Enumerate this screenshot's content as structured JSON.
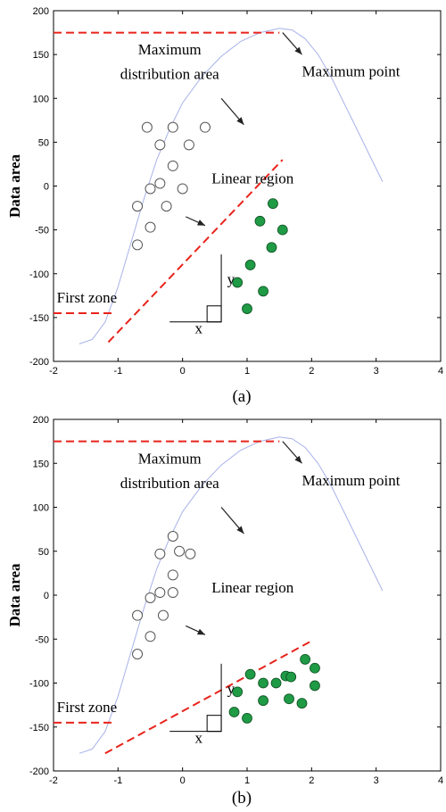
{
  "chart_data": [
    {
      "type": "scatter",
      "caption": "(a)",
      "ylabel": "Data area",
      "xlim": [
        -2,
        4
      ],
      "ylim": [
        -200,
        200
      ],
      "xticks": [
        -2,
        -1,
        0,
        1,
        2,
        3,
        4
      ],
      "yticks": [
        -200,
        -150,
        -100,
        -50,
        0,
        50,
        100,
        150,
        200
      ],
      "curve": [
        [
          -1.6,
          -180
        ],
        [
          -1.4,
          -175
        ],
        [
          -1.2,
          -155
        ],
        [
          -1.0,
          -115
        ],
        [
          -0.8,
          -65
        ],
        [
          -0.6,
          -15
        ],
        [
          -0.4,
          30
        ],
        [
          -0.2,
          65
        ],
        [
          0,
          95
        ],
        [
          0.3,
          125
        ],
        [
          0.6,
          148
        ],
        [
          0.9,
          165
        ],
        [
          1.2,
          175
        ],
        [
          1.5,
          180
        ],
        [
          1.7,
          178
        ],
        [
          1.9,
          168
        ],
        [
          2.1,
          150
        ],
        [
          2.3,
          125
        ],
        [
          2.5,
          95
        ],
        [
          2.7,
          65
        ],
        [
          2.9,
          35
        ],
        [
          3.1,
          5
        ]
      ],
      "open_points": [
        [
          -0.55,
          67
        ],
        [
          -0.35,
          47
        ],
        [
          -0.15,
          67
        ],
        [
          0.35,
          67
        ],
        [
          0.1,
          47
        ],
        [
          -0.15,
          23
        ],
        [
          -0.35,
          3
        ],
        [
          -0.5,
          -3
        ],
        [
          -0.7,
          -23
        ],
        [
          -0.25,
          -23
        ],
        [
          0,
          -3
        ],
        [
          -0.5,
          -47
        ],
        [
          -0.7,
          -67
        ]
      ],
      "filled_points": [
        [
          1.4,
          -20
        ],
        [
          1.2,
          -40
        ],
        [
          1.55,
          -50
        ],
        [
          1.38,
          -70
        ],
        [
          1.05,
          -90
        ],
        [
          0.85,
          -110
        ],
        [
          1.25,
          -120
        ],
        [
          1.0,
          -140
        ]
      ],
      "dashed_lines": [
        {
          "name": "max",
          "pts": [
            [
              -2,
              175
            ],
            [
              1.5,
              175
            ]
          ]
        },
        {
          "name": "first",
          "pts": [
            [
              -2,
              -145
            ],
            [
              -1.1,
              -145
            ]
          ]
        },
        {
          "name": "linear",
          "pts": [
            [
              -1.15,
              -178
            ],
            [
              1.55,
              30
            ]
          ]
        }
      ],
      "arrows": [
        {
          "name": "max-point",
          "from": [
            1.55,
            175
          ],
          "to": [
            1.85,
            150
          ]
        },
        {
          "name": "dist-area",
          "from": [
            0.6,
            100
          ],
          "to": [
            0.95,
            70
          ]
        },
        {
          "name": "linear-region",
          "from": [
            0.05,
            -35
          ],
          "to": [
            0.35,
            -45
          ]
        }
      ],
      "axes_marker": {
        "corner": [
          -0.2,
          -155
        ],
        "x_end": [
          0.6,
          -155
        ],
        "y_end": [
          0.6,
          -78
        ],
        "box": 0.22,
        "box_h": 18,
        "x_label_at": [
          0.25,
          -168
        ],
        "y_label_at": [
          0.75,
          -112
        ]
      },
      "labels": [
        {
          "name": "max-dist-line1",
          "text": "Maximum",
          "at": [
            -0.2,
            150
          ],
          "anchor": "middle"
        },
        {
          "name": "max-dist-line2",
          "text": "distribution area",
          "at": [
            -0.2,
            122
          ],
          "anchor": "middle"
        },
        {
          "name": "max-point",
          "text": "Maximum point",
          "at": [
            1.85,
            125
          ],
          "anchor": "start"
        },
        {
          "name": "linear-region",
          "text": "Linear region",
          "at": [
            0.45,
            3
          ],
          "anchor": "start"
        },
        {
          "name": "first-zone",
          "text": "First zone",
          "at": [
            -1.95,
            -133
          ],
          "anchor": "start"
        },
        {
          "name": "x",
          "text": "x",
          "at": [
            0.25,
            -168
          ],
          "anchor": "middle"
        },
        {
          "name": "y",
          "text": "y",
          "at": [
            0.75,
            -112
          ],
          "anchor": "middle"
        }
      ]
    },
    {
      "type": "scatter",
      "caption": "(b)",
      "ylabel": "Data area",
      "xlim": [
        -2,
        4
      ],
      "ylim": [
        -200,
        200
      ],
      "xticks": [
        -2,
        -1,
        0,
        1,
        2,
        3,
        4
      ],
      "yticks": [
        -200,
        -150,
        -100,
        -50,
        0,
        50,
        100,
        150,
        200
      ],
      "curve": [
        [
          -1.6,
          -180
        ],
        [
          -1.4,
          -175
        ],
        [
          -1.2,
          -155
        ],
        [
          -1.0,
          -115
        ],
        [
          -0.8,
          -65
        ],
        [
          -0.6,
          -15
        ],
        [
          -0.4,
          30
        ],
        [
          -0.2,
          65
        ],
        [
          0,
          95
        ],
        [
          0.3,
          125
        ],
        [
          0.6,
          148
        ],
        [
          0.9,
          165
        ],
        [
          1.2,
          175
        ],
        [
          1.5,
          180
        ],
        [
          1.7,
          178
        ],
        [
          1.9,
          168
        ],
        [
          2.1,
          150
        ],
        [
          2.3,
          125
        ],
        [
          2.5,
          95
        ],
        [
          2.7,
          65
        ],
        [
          2.9,
          35
        ],
        [
          3.1,
          5
        ]
      ],
      "open_points": [
        [
          -0.15,
          67
        ],
        [
          -0.35,
          47
        ],
        [
          -0.05,
          50
        ],
        [
          0.12,
          47
        ],
        [
          -0.15,
          23
        ],
        [
          -0.35,
          3
        ],
        [
          -0.15,
          3
        ],
        [
          -0.5,
          -3
        ],
        [
          -0.7,
          -23
        ],
        [
          -0.3,
          -23
        ],
        [
          -0.5,
          -47
        ],
        [
          -0.7,
          -67
        ]
      ],
      "filled_points": [
        [
          1.9,
          -73
        ],
        [
          2.05,
          -83
        ],
        [
          0.85,
          -110
        ],
        [
          1.05,
          -90
        ],
        [
          1.25,
          -100
        ],
        [
          1.45,
          -100
        ],
        [
          1.6,
          -92
        ],
        [
          1.68,
          -93
        ],
        [
          2.05,
          -103
        ],
        [
          0.8,
          -133
        ],
        [
          1.25,
          -120
        ],
        [
          1.65,
          -118
        ],
        [
          1.85,
          -123
        ],
        [
          1.0,
          -140
        ]
      ],
      "dashed_lines": [
        {
          "name": "max",
          "pts": [
            [
              -2,
              175
            ],
            [
              1.5,
              175
            ]
          ]
        },
        {
          "name": "first",
          "pts": [
            [
              -2,
              -145
            ],
            [
              -1.1,
              -145
            ]
          ]
        },
        {
          "name": "linear",
          "pts": [
            [
              -1.2,
              -180
            ],
            [
              2.0,
              -52
            ]
          ]
        }
      ],
      "arrows": [
        {
          "name": "max-point",
          "from": [
            1.55,
            175
          ],
          "to": [
            1.85,
            150
          ]
        },
        {
          "name": "dist-area",
          "from": [
            0.6,
            100
          ],
          "to": [
            0.95,
            70
          ]
        },
        {
          "name": "linear-region",
          "from": [
            0.05,
            -35
          ],
          "to": [
            0.35,
            -45
          ]
        }
      ],
      "axes_marker": {
        "corner": [
          -0.2,
          -155
        ],
        "x_end": [
          0.6,
          -155
        ],
        "y_end": [
          0.6,
          -78
        ],
        "box": 0.22,
        "box_h": 18,
        "x_label_at": [
          0.25,
          -168
        ],
        "y_label_at": [
          0.75,
          -112
        ]
      },
      "labels": [
        {
          "name": "max-dist-line1",
          "text": "Maximum",
          "at": [
            -0.2,
            150
          ],
          "anchor": "middle"
        },
        {
          "name": "max-dist-line2",
          "text": "distribution area",
          "at": [
            -0.2,
            122
          ],
          "anchor": "middle"
        },
        {
          "name": "max-point",
          "text": "Maximum point",
          "at": [
            1.85,
            125
          ],
          "anchor": "start"
        },
        {
          "name": "linear-region",
          "text": "Linear region",
          "at": [
            0.45,
            3
          ],
          "anchor": "start"
        },
        {
          "name": "first-zone",
          "text": "First zone",
          "at": [
            -1.95,
            -133
          ],
          "anchor": "start"
        },
        {
          "name": "x",
          "text": "x",
          "at": [
            0.25,
            -168
          ],
          "anchor": "middle"
        },
        {
          "name": "y",
          "text": "y",
          "at": [
            0.75,
            -112
          ],
          "anchor": "middle"
        }
      ]
    }
  ],
  "colors": {
    "curve": "#a8b2e8",
    "dashed": "#e8231b",
    "filled": "#1f9a45",
    "filled_stroke": "#0e4f22",
    "open_stroke": "#555555",
    "axis": "#000000"
  }
}
